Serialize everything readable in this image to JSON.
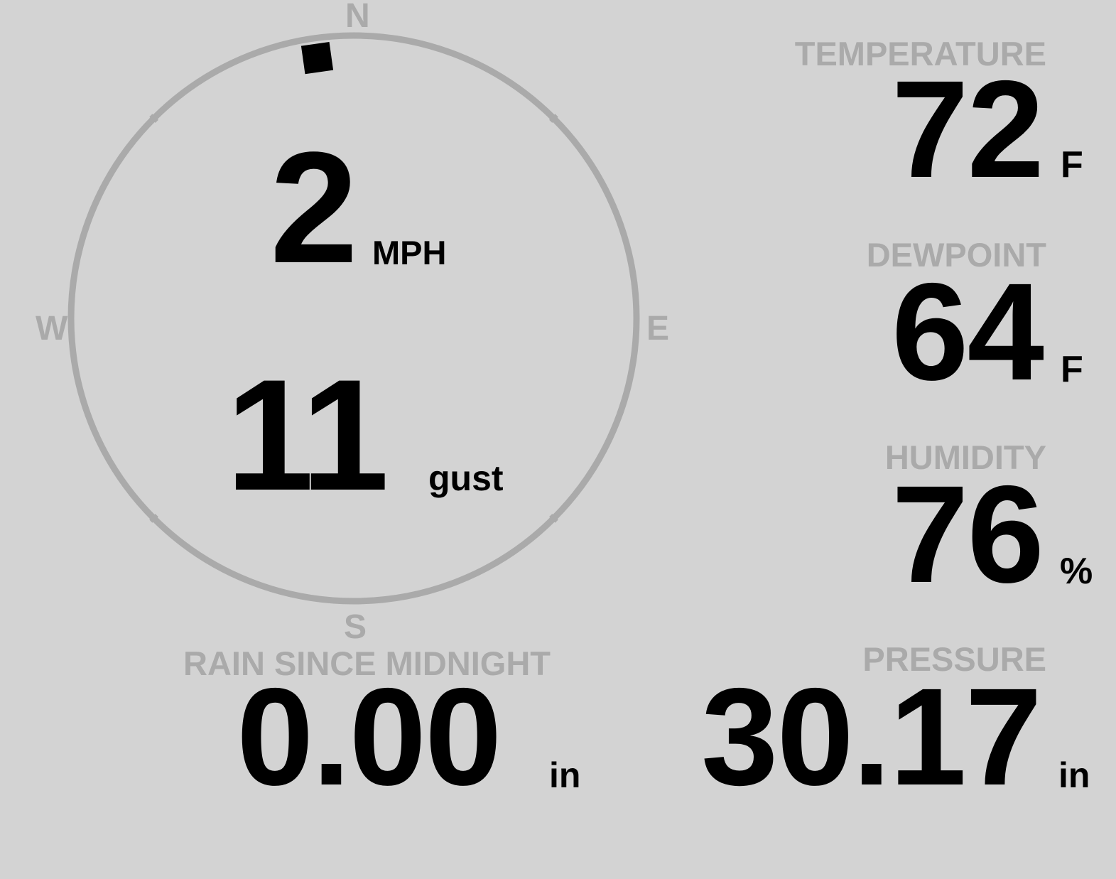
{
  "colors": {
    "background": "#d3d3d3",
    "label": "#aaaaaa",
    "value": "#000000",
    "ring": "#aaaaaa"
  },
  "wind": {
    "direction_degrees": 352,
    "speed": "2",
    "speed_unit": "MPH",
    "gust": "11",
    "gust_label": "gust",
    "compass": {
      "n": "N",
      "e": "E",
      "s": "S",
      "w": "W"
    }
  },
  "temperature": {
    "label": "TEMPERATURE",
    "value": "72",
    "unit": "F"
  },
  "dewpoint": {
    "label": "DEWPOINT",
    "value": "64",
    "unit": "F"
  },
  "humidity": {
    "label": "HUMIDITY",
    "value": "76",
    "unit": "%"
  },
  "rain": {
    "label": "RAIN SINCE MIDNIGHT",
    "value": "0.00",
    "unit": "in"
  },
  "pressure": {
    "label": "PRESSURE",
    "value": "30.17",
    "unit": "in"
  }
}
